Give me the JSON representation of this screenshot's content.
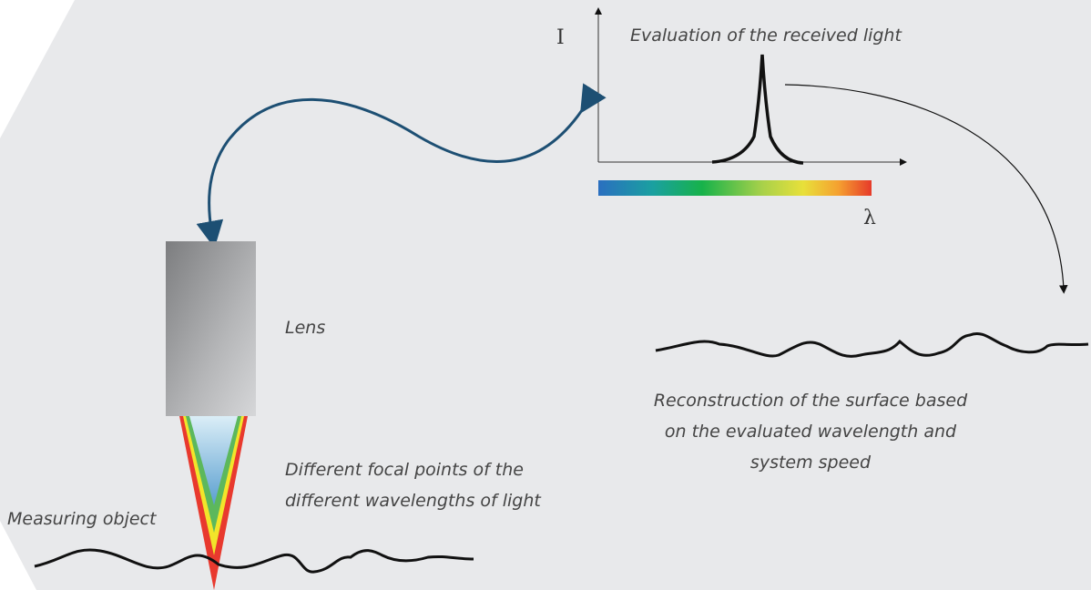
{
  "axis_label_intensity": "I",
  "axis_label_wavelength": "λ",
  "evaluation_title": "Evaluation of the received light",
  "lens_label": "Lens",
  "focal_label": [
    "Different focal points of the",
    "different wavelengths of light"
  ],
  "object_label": "Measuring object",
  "reconstruction_label": [
    "Reconstruction of the surface based",
    "on the evaluated wavelength and",
    "system speed"
  ]
}
